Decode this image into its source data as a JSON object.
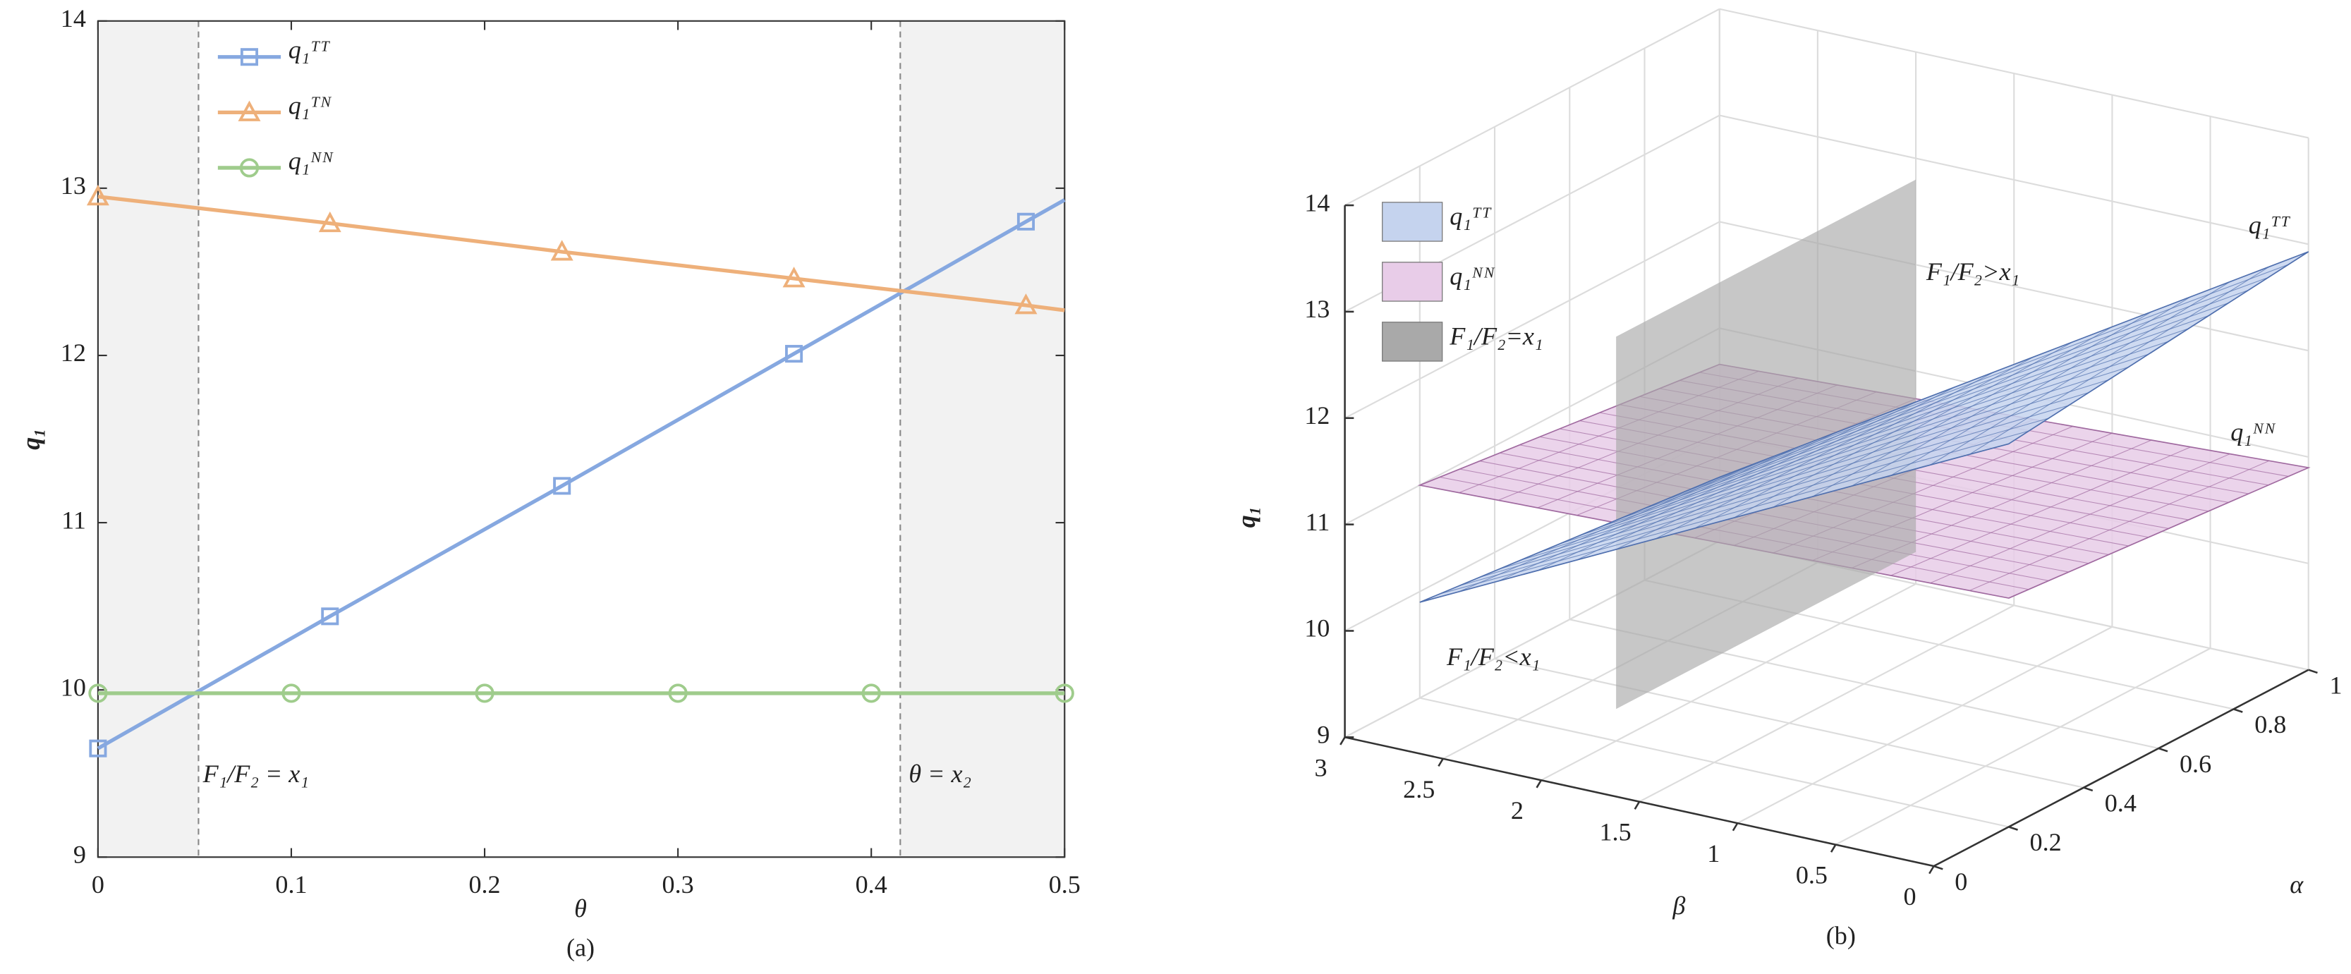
{
  "chart_data": [
    {
      "type": "line",
      "caption": "(a)",
      "xlabel": "θ",
      "ylabel": "q₁",
      "xlim": [
        0,
        0.5
      ],
      "xticks": [
        0,
        0.1,
        0.2,
        0.3,
        0.4,
        0.5
      ],
      "ylim": [
        9,
        14
      ],
      "yticks": [
        9,
        10,
        11,
        12,
        13,
        14
      ],
      "shaded": [
        [
          0,
          0.052
        ],
        [
          0.415,
          0.5
        ]
      ],
      "shade_color": "#f2f2f2",
      "vlines": [
        0.052,
        0.415
      ],
      "annotations": [
        "F₁/F₂ = x₁",
        "θ = x₂"
      ],
      "legend": "upper left",
      "series": [
        {
          "name": "q₁ᵀᵀ",
          "color": "#86a8e0",
          "marker": "square",
          "x": [
            0,
            0.12,
            0.24,
            0.36,
            0.48,
            0.5
          ],
          "values": [
            9.65,
            10.44,
            11.22,
            12.01,
            12.8,
            12.93
          ],
          "markers": [
            true,
            true,
            true,
            true,
            true,
            false
          ]
        },
        {
          "name": "q₁ᵀᴺ",
          "color": "#eeb07a",
          "marker": "triangle",
          "x": [
            0,
            0.12,
            0.24,
            0.36,
            0.48,
            0.5
          ],
          "values": [
            12.95,
            12.79,
            12.62,
            12.46,
            12.3,
            12.27
          ],
          "markers": [
            true,
            true,
            true,
            true,
            true,
            false
          ]
        },
        {
          "name": "q₁ᴺᴺ",
          "color": "#9fcc8c",
          "marker": "circle",
          "x": [
            0,
            0.1,
            0.2,
            0.3,
            0.4,
            0.5
          ],
          "values": [
            9.98,
            9.98,
            9.98,
            9.98,
            9.98,
            9.98
          ],
          "markers": [
            true,
            true,
            true,
            true,
            true,
            true
          ]
        }
      ]
    },
    {
      "type": "surface3d",
      "caption": "(b)",
      "xlabel": "β",
      "ylabel": "α",
      "zlabel": "q₁",
      "xlim": [
        0,
        3
      ],
      "xticks": [
        0,
        0.5,
        1,
        1.5,
        2,
        2.5,
        3
      ],
      "ylim": [
        0,
        1
      ],
      "yticks": [
        0,
        0.2,
        0.4,
        0.6,
        0.8,
        1
      ],
      "zlim": [
        9,
        14
      ],
      "zticks": [
        9,
        10,
        11,
        12,
        13,
        14
      ],
      "grid": true,
      "mesh": 15,
      "annotations": [
        "F₁/F₂>x₁",
        "F₁/F₂<x₁"
      ],
      "surfaces": [
        {
          "name": "q₁ᴺᴺ",
          "color": "#e8cce8",
          "edge": "#a06aa0",
          "x": [
            0,
            3
          ],
          "y": [
            0.2,
            1
          ],
          "values": [
            [
              11.15,
              10.9
            ],
            [
              11.0,
              10.66
            ]
          ]
        },
        {
          "name": "q₁ᵀᵀ",
          "color": "#c5d3ee",
          "edge": "#4f6fae",
          "x": [
            0,
            3
          ],
          "y": [
            0.2,
            1
          ],
          "values": [
            [
              12.6,
              12.93
            ],
            [
              9.9,
              9.6
            ]
          ]
        }
      ],
      "plane": {
        "name": "F₁/F₂=x₁",
        "color": "#a9a9a9",
        "x": 2,
        "y": [
          0.2,
          1
        ],
        "zlim": [
          9.3,
          12.8
        ]
      }
    }
  ]
}
